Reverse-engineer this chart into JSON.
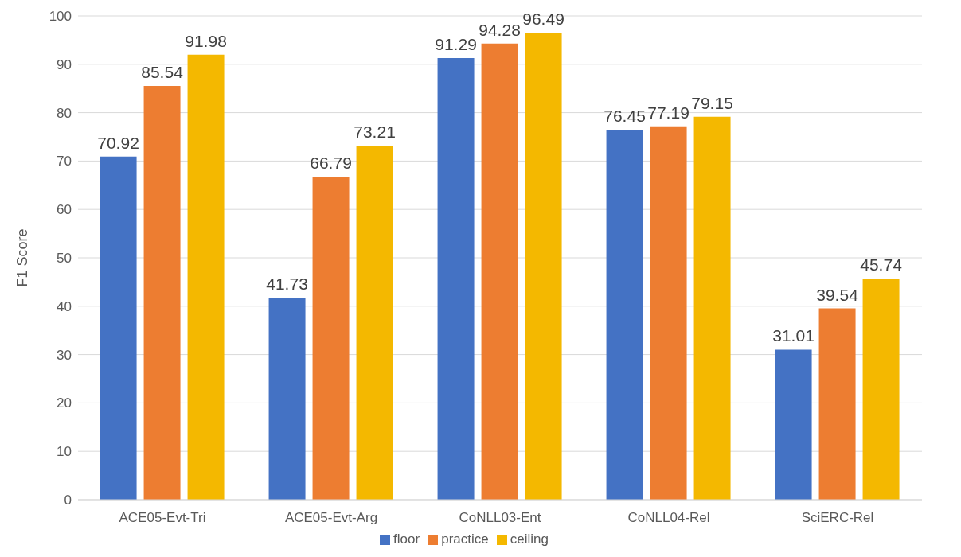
{
  "chart_data": {
    "type": "bar",
    "ylabel": "F1 Score",
    "categories": [
      "ACE05-Evt-Tri",
      "ACE05-Evt-Arg",
      "CoNLL03-Ent",
      "CoNLL04-Rel",
      "SciERC-Rel"
    ],
    "series": [
      {
        "name": "floor",
        "color": "#4472c4",
        "values": [
          70.92,
          41.73,
          91.29,
          76.45,
          31.01
        ]
      },
      {
        "name": "practice",
        "color": "#ed7d31",
        "values": [
          85.54,
          66.79,
          94.28,
          77.19,
          39.54
        ]
      },
      {
        "name": "ceiling",
        "color": "#f4b800",
        "values": [
          91.98,
          73.21,
          96.49,
          79.15,
          45.74
        ]
      }
    ],
    "ylim": [
      0,
      100
    ],
    "yticks": [
      0,
      10,
      20,
      30,
      40,
      50,
      60,
      70,
      80,
      90,
      100
    ],
    "grid": "y",
    "legend": "bottom",
    "data_labels": true
  }
}
